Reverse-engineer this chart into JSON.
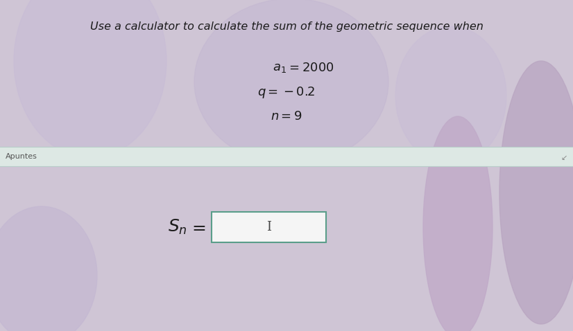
{
  "title_text": "Use a calculator to calculate the sum of the geometric sequence when",
  "line1_left": "a",
  "line1_sub": "1",
  "line1_right": " = 2000",
  "line2": "q = −0.2",
  "line3": "n = 9",
  "label_sn_main": "S",
  "label_sn_sub": "n",
  "label_sn_eq": " =",
  "apuntes_text": "Apuntes",
  "bg_color": "#cfc5d5",
  "divider_bg": "#dde8e4",
  "divider_line_color": "#b8cec9",
  "box_edge_color": "#5a9e8a",
  "box_face_color": "#f5f5f5",
  "title_color": "#1a1a1a",
  "math_color": "#1a1a1a",
  "apuntes_color": "#555555",
  "title_fontsize": 11.5,
  "math_fontsize": 13,
  "sn_fontsize": 16,
  "apuntes_fontsize": 8,
  "fig_width": 8.26,
  "fig_height": 4.78,
  "dpi": 100
}
